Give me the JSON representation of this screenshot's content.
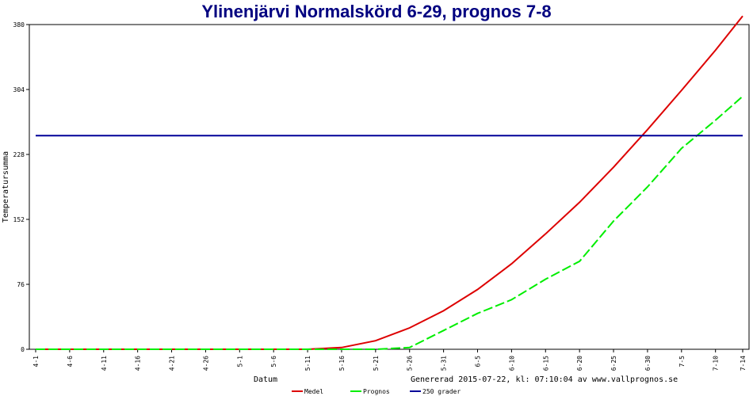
{
  "chart_data": {
    "type": "line",
    "title": "Ylinenjärvi Normalskörd 6-29, prognos 7-8",
    "xlabel": "Datum",
    "ylabel": "Temperatursumma",
    "generated": "Genererad 2015-07-22, kl: 07:10:04 av www.vallprognos.se",
    "ylim": [
      0,
      380
    ],
    "yticks": [
      "0",
      "76",
      "152",
      "228",
      "304",
      "380"
    ],
    "x_start": "4-1",
    "x_days": 104,
    "xticks": [
      "4-1",
      "4-6",
      "4-11",
      "4-16",
      "4-21",
      "4-26",
      "5-1",
      "5-6",
      "5-11",
      "5-16",
      "5-21",
      "5-26",
      "5-31",
      "6-5",
      "6-10",
      "6-15",
      "6-20",
      "6-25",
      "6-30",
      "7-5",
      "7-10",
      "7-14"
    ],
    "series": [
      {
        "name": "Medel",
        "color": "#dd0000",
        "dash": "none",
        "x": [
          "4-1",
          "5-11",
          "5-16",
          "5-21",
          "5-26",
          "5-31",
          "6-5",
          "6-10",
          "6-15",
          "6-20",
          "6-25",
          "6-30",
          "7-5",
          "7-10",
          "7-14"
        ],
        "values": [
          0,
          0,
          2,
          10,
          25,
          45,
          70,
          100,
          135,
          172,
          213,
          257,
          303,
          350,
          390
        ]
      },
      {
        "name": "Prognos",
        "color": "#00ee00",
        "dash": "12,4",
        "x": [
          "4-1",
          "5-21",
          "5-26",
          "5-31",
          "6-5",
          "6-10",
          "6-15",
          "6-20",
          "6-25",
          "6-30",
          "7-5",
          "7-10",
          "7-14"
        ],
        "values": [
          0,
          0,
          2,
          22,
          42,
          58,
          82,
          103,
          150,
          190,
          235,
          268,
          296
        ]
      },
      {
        "name": "250 grader",
        "color": "#000099",
        "dash": "none",
        "x": [
          "4-1",
          "7-14"
        ],
        "values": [
          250,
          250
        ]
      }
    ]
  }
}
